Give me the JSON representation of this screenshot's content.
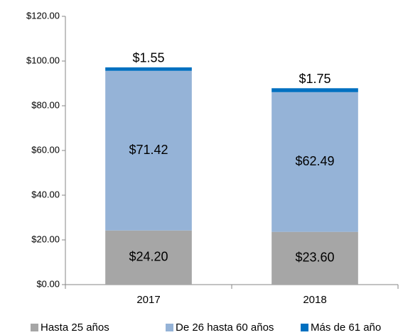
{
  "chart_data": {
    "type": "stacked_bar",
    "categories": [
      "2017",
      "2018"
    ],
    "series": [
      {
        "name": "Hasta 25 años",
        "color": "#a6a6a6",
        "values": [
          24.2,
          23.6
        ],
        "value_labels": [
          "$24.20",
          "$23.60"
        ]
      },
      {
        "name": "De 26 hasta 60 años",
        "color": "#95b3d7",
        "values": [
          71.42,
          62.49
        ],
        "value_labels": [
          "$71.42",
          "$62.49"
        ]
      },
      {
        "name": "Más de 61 año",
        "color": "#0070c0",
        "values": [
          1.55,
          1.75
        ],
        "value_labels": [
          "$1.55",
          "$1.75"
        ]
      }
    ],
    "ylim": [
      0,
      120
    ],
    "yticks": [
      {
        "value": 0,
        "label": "$0.00"
      },
      {
        "value": 20,
        "label": "$20.00"
      },
      {
        "value": 40,
        "label": "$40.00"
      },
      {
        "value": 60,
        "label": "$60.00"
      },
      {
        "value": 80,
        "label": "$80.00"
      },
      {
        "value": 100,
        "label": "$100.00"
      },
      {
        "value": 120,
        "label": "$120.00"
      }
    ],
    "legend": "bottom"
  }
}
